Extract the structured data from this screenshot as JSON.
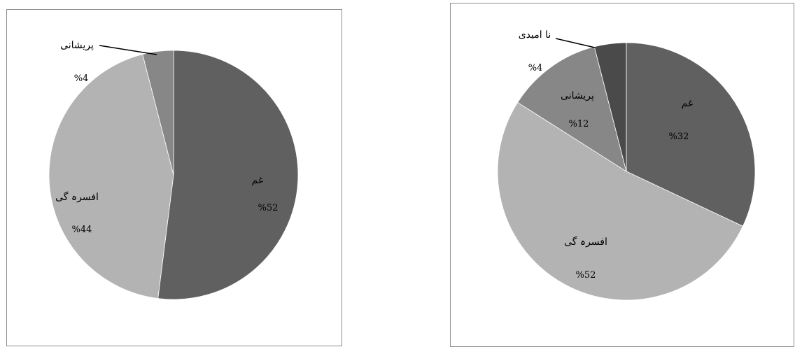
{
  "chart_data": [
    {
      "type": "pie",
      "slices": [
        {
          "label": "غم",
          "value": 52,
          "value_label": "%52",
          "color": "#606060"
        },
        {
          "label": "افسرہ گی",
          "value": 44,
          "value_label": "%44",
          "color": "#b3b3b3"
        },
        {
          "label": "پریشانی",
          "value": 4,
          "value_label": "%4",
          "color": "#878787"
        }
      ],
      "start": "top",
      "direction": "clockwise"
    },
    {
      "type": "pie",
      "slices": [
        {
          "label": "غم",
          "value": 32,
          "value_label": "%32",
          "color": "#606060"
        },
        {
          "label": "افسرہ گی",
          "value": 52,
          "value_label": "%52",
          "color": "#b3b3b3"
        },
        {
          "label": "پریشانی",
          "value": 12,
          "value_label": "%12",
          "color": "#878787"
        },
        {
          "label": "نا امیدی",
          "value": 4,
          "value_label": "%4",
          "color": "#4a4a4a"
        }
      ],
      "start": "top",
      "direction": "clockwise"
    }
  ]
}
